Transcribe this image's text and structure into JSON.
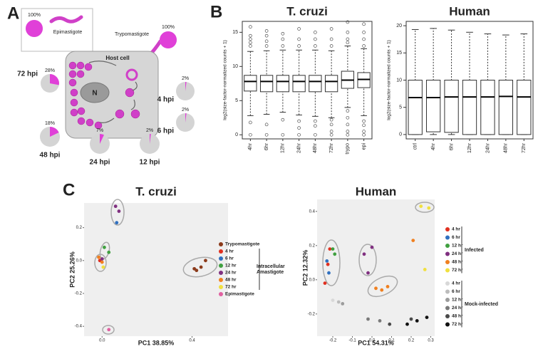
{
  "panel_labels": [
    "A",
    "B",
    "C"
  ],
  "diagram": {
    "host_cell": "Host cell",
    "nucleus": "N",
    "epimastigote": "Epimastigote",
    "trypomastigote": "Trypomastigote"
  },
  "chart_data": [
    {
      "type": "pie",
      "values": [
        100
      ],
      "value_labels": [
        "100%"
      ],
      "color": "#e040d8"
    },
    {
      "type": "pie",
      "values": [
        100
      ],
      "value_labels": [
        "100%"
      ],
      "color": "#e040d8"
    },
    {
      "type": "pie",
      "title": "72 hpi",
      "values": [
        28
      ],
      "value_labels": [
        "28%"
      ],
      "color": "#e040d8"
    },
    {
      "type": "pie",
      "title": "4 hpi",
      "values": [
        2
      ],
      "value_labels": [
        "2%"
      ],
      "color": "#e040d8"
    },
    {
      "type": "pie",
      "title": "6 hpi",
      "values": [
        2
      ],
      "value_labels": [
        "2%"
      ],
      "color": "#e040d8"
    },
    {
      "type": "pie",
      "title": "48 hpi",
      "values": [
        18
      ],
      "value_labels": [
        "18%"
      ],
      "color": "#e040d8"
    },
    {
      "type": "pie",
      "title": "24 hpi",
      "values": [
        7
      ],
      "value_labels": [
        "7%"
      ],
      "color": "#e040d8"
    },
    {
      "type": "pie",
      "title": "12 hpi",
      "values": [
        2
      ],
      "value_labels": [
        "2%"
      ],
      "color": "#e040d8"
    },
    {
      "type": "box",
      "title": "T. cruzi",
      "y_label": "log2(size-factor-normalized counts + 1)",
      "categories": [
        "4hr",
        "6hr",
        "12hr",
        "24hr",
        "48hr",
        "72hr",
        "trypo",
        "epi"
      ],
      "ylim": [
        -0.6,
        16.6
      ],
      "yticks": [
        0,
        5,
        10,
        15
      ],
      "boxes": [
        {
          "whislo": 2.8,
          "q1": 6.4,
          "med": 7.8,
          "q3": 8.7,
          "whishi": 12.2,
          "outliers": [
            13,
            13.5,
            14,
            14.5,
            15.8,
            1.8,
            0
          ]
        },
        {
          "whislo": 3.0,
          "q1": 6.3,
          "med": 7.8,
          "q3": 8.7,
          "whishi": 12.3,
          "outliers": [
            13,
            13.7,
            14.5,
            15.2,
            1.5,
            0
          ]
        },
        {
          "whislo": 3.3,
          "q1": 6.3,
          "med": 7.8,
          "q3": 8.7,
          "whishi": 12.4,
          "outliers": [
            13,
            14,
            14.8,
            2.2,
            0
          ]
        },
        {
          "whislo": 2.9,
          "q1": 6.3,
          "med": 7.8,
          "q3": 8.7,
          "whishi": 12.4,
          "outliers": [
            13,
            14,
            15.5,
            2,
            1,
            0
          ]
        },
        {
          "whislo": 2.7,
          "q1": 6.3,
          "med": 7.8,
          "q3": 8.7,
          "whishi": 12.4,
          "outliers": [
            13,
            14,
            15,
            2,
            1.3,
            0
          ]
        },
        {
          "whislo": 2.5,
          "q1": 6.3,
          "med": 7.8,
          "q3": 8.7,
          "whishi": 12.3,
          "outliers": [
            13,
            14,
            15.5,
            2.2,
            1.5,
            0.5,
            0
          ]
        },
        {
          "whislo": 4.0,
          "q1": 6.8,
          "med": 8.0,
          "q3": 9.3,
          "whishi": 13.0,
          "outliers": [
            13.5,
            14,
            15,
            16.5,
            3.5,
            2.5,
            1.5,
            0.5,
            0
          ]
        },
        {
          "whislo": 2.8,
          "q1": 6.9,
          "med": 8.1,
          "q3": 9.1,
          "whishi": 12.6,
          "outliers": [
            13,
            14,
            15,
            16.2,
            2,
            1.4,
            0.5,
            0
          ]
        }
      ]
    },
    {
      "type": "box",
      "title": "Human",
      "y_label": "log2(size-factor-normalized counts + 1)",
      "categories": [
        "ctrl",
        "4hr",
        "6hr",
        "12hr",
        "24hr",
        "48hr",
        "72hr"
      ],
      "ylim": [
        -0.8,
        20.8
      ],
      "yticks": [
        0,
        5,
        10,
        15,
        20
      ],
      "boxes": [
        {
          "whislo": 0,
          "q1": 0,
          "med": 6.8,
          "q3": 10,
          "whishi": 19.3,
          "outliers": []
        },
        {
          "whislo": 0,
          "q1": 0.5,
          "med": 6.8,
          "q3": 10,
          "whishi": 19.5,
          "outliers": []
        },
        {
          "whislo": 0,
          "q1": 0.4,
          "med": 6.9,
          "q3": 10,
          "whishi": 19.2,
          "outliers": []
        },
        {
          "whislo": 0,
          "q1": 0,
          "med": 6.9,
          "q3": 10,
          "whishi": 18.8,
          "outliers": []
        },
        {
          "whislo": 0,
          "q1": 0,
          "med": 6.9,
          "q3": 10,
          "whishi": 18.5,
          "outliers": []
        },
        {
          "whislo": 0,
          "q1": 0,
          "med": 7.0,
          "q3": 10,
          "whishi": 18.3,
          "outliers": []
        },
        {
          "whislo": 0,
          "q1": 0,
          "med": 6.9,
          "q3": 10,
          "whishi": 18.5,
          "outliers": []
        }
      ]
    },
    {
      "type": "scatter",
      "title": "T. cruzi",
      "x_label": "PC1 38.85%",
      "y_label": "PC2 25.26%",
      "xlim": [
        -0.08,
        0.56
      ],
      "ylim": [
        -0.46,
        0.35
      ],
      "xticks": [
        {
          "value": 0,
          "label": "0.0"
        },
        0.4
      ],
      "yticks": [
        0.2,
        {
          "value": 0,
          "label": "0.0"
        },
        -0.2,
        -0.4
      ],
      "group_labels": [
        "Intracellular Amastigote"
      ],
      "series": [
        {
          "name": "Trypomastigote",
          "color": "#8b3a1a",
          "x": [
            0.41,
            0.42,
            0.44,
            0.46
          ],
          "y": [
            -0.05,
            -0.06,
            -0.04,
            0.0
          ]
        },
        {
          "name": "4 hr",
          "color": "#e03020",
          "x": [
            -0.01
          ],
          "y": [
            0.0
          ]
        },
        {
          "name": "6 hr",
          "color": "#3070c0",
          "x": [
            0.065
          ],
          "y": [
            0.23
          ]
        },
        {
          "name": "12 hr",
          "color": "#40a040",
          "x": [
            0.01,
            0.03
          ],
          "y": [
            0.08,
            0.05
          ]
        },
        {
          "name": "24 hr",
          "color": "#803080",
          "x": [
            0.06,
            0.075,
            0.0
          ],
          "y": [
            0.33,
            0.3,
            0.01
          ]
        },
        {
          "name": "48 hr",
          "color": "#f08020",
          "x": [
            -0.015,
            0.0
          ],
          "y": [
            0.02,
            -0.01
          ]
        },
        {
          "name": "72 hr",
          "color": "#f0e040",
          "x": [
            0.005
          ],
          "y": [
            -0.04
          ]
        },
        {
          "name": "Epimastigote",
          "color": "#e060a0",
          "x": [
            0.03
          ],
          "y": [
            -0.42
          ]
        }
      ]
    },
    {
      "type": "scatter",
      "title": "Human",
      "x_label": "PC1 54.31%",
      "y_label": "PC2 12.32%",
      "xlim": [
        -0.28,
        0.32
      ],
      "ylim": [
        -0.33,
        0.47
      ],
      "xticks": [
        -0.2,
        -0.1,
        {
          "value": 0,
          "label": "0.0"
        },
        0.1,
        0.2,
        0.3
      ],
      "yticks": [
        0.4,
        0.2,
        {
          "value": 0,
          "label": "0.0"
        },
        -0.2
      ],
      "group_labels": [
        "Infected",
        "Mock-infected"
      ],
      "series": [
        {
          "name": "4 hr",
          "color": "#e03020",
          "x": [
            -0.24,
            -0.225,
            -0.215
          ],
          "y": [
            -0.02,
            0.09,
            0.18
          ]
        },
        {
          "name": "6 hr",
          "color": "#3070c0",
          "x": [
            -0.23,
            -0.22
          ],
          "y": [
            0.11,
            0.04
          ]
        },
        {
          "name": "12 hr",
          "color": "#40a040",
          "x": [
            -0.2,
            -0.19
          ],
          "y": [
            0.18,
            0.15
          ]
        },
        {
          "name": "24 hr",
          "color": "#803080",
          "x": [
            -0.04,
            -0.02,
            0.0
          ],
          "y": [
            0.15,
            0.04,
            0.19
          ]
        },
        {
          "name": "48 hr",
          "color": "#f08020",
          "x": [
            0.02,
            0.05,
            0.08,
            0.21
          ],
          "y": [
            -0.05,
            -0.06,
            -0.04,
            0.23
          ]
        },
        {
          "name": "72 hr",
          "color": "#f0e040",
          "x": [
            0.25,
            0.29,
            0.27
          ],
          "y": [
            0.43,
            0.42,
            0.06
          ]
        },
        {
          "name": "4 hr",
          "color": "#d8d8d8",
          "x": [
            -0.2
          ],
          "y": [
            -0.12
          ]
        },
        {
          "name": "6 hr",
          "color": "#bcbcbc",
          "x": [
            -0.17
          ],
          "y": [
            -0.13
          ]
        },
        {
          "name": "12 hr",
          "color": "#9c9c9c",
          "x": [
            -0.15
          ],
          "y": [
            -0.14
          ]
        },
        {
          "name": "24 hr",
          "color": "#7a7a7a",
          "x": [
            -0.02,
            0.04
          ],
          "y": [
            -0.23,
            -0.24
          ]
        },
        {
          "name": "48 hr",
          "color": "#4a4a4a",
          "x": [
            0.09,
            0.2
          ],
          "y": [
            -0.26,
            -0.23
          ]
        },
        {
          "name": "72 hr",
          "color": "#111111",
          "x": [
            0.18,
            0.23,
            0.28
          ],
          "y": [
            -0.26,
            -0.24,
            -0.22
          ]
        }
      ]
    }
  ]
}
